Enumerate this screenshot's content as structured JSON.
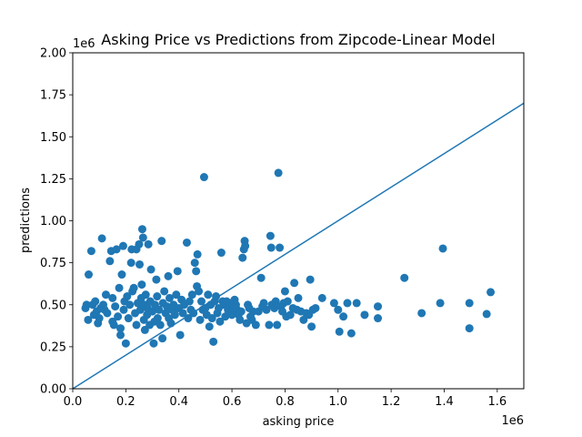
{
  "chart_data": {
    "type": "scatter",
    "title": "Asking Price vs Predictions from Zipcode-Linear Model",
    "xlabel": "asking price",
    "ylabel": "predictions",
    "x_offset_text": "1e6",
    "y_offset_text": "1e6",
    "xlim": [
      0,
      1700000
    ],
    "ylim": [
      0,
      2000000
    ],
    "x_ticks": [
      0,
      200000,
      400000,
      600000,
      800000,
      1000000,
      1200000,
      1400000,
      1600000
    ],
    "x_tick_labels": [
      "0.0",
      "0.2",
      "0.4",
      "0.6",
      "0.8",
      "1.0",
      "1.2",
      "1.4",
      "1.6"
    ],
    "y_ticks": [
      0,
      250000,
      500000,
      750000,
      1000000,
      1250000,
      1500000,
      1750000,
      2000000
    ],
    "y_tick_labels": [
      "0.00",
      "0.25",
      "0.50",
      "0.75",
      "1.00",
      "1.25",
      "1.50",
      "1.75",
      "2.00"
    ],
    "grid": false,
    "colors": {
      "series": "#1f77b4",
      "axes": "#000000",
      "background": "#ffffff"
    },
    "reference_line": {
      "x": [
        0,
        1700000
      ],
      "y": [
        0,
        1700000
      ]
    },
    "points": [
      [
        48000,
        480000
      ],
      [
        52000,
        500000
      ],
      [
        58000,
        410000
      ],
      [
        60000,
        680000
      ],
      [
        70000,
        820000
      ],
      [
        75000,
        500000
      ],
      [
        80000,
        440000
      ],
      [
        85000,
        520000
      ],
      [
        90000,
        460000
      ],
      [
        95000,
        390000
      ],
      [
        100000,
        420000
      ],
      [
        105000,
        480000
      ],
      [
        110000,
        895000
      ],
      [
        115000,
        500000
      ],
      [
        120000,
        470000
      ],
      [
        125000,
        560000
      ],
      [
        130000,
        450000
      ],
      [
        140000,
        760000
      ],
      [
        145000,
        820000
      ],
      [
        150000,
        540000
      ],
      [
        150000,
        400000
      ],
      [
        155000,
        380000
      ],
      [
        160000,
        490000
      ],
      [
        165000,
        830000
      ],
      [
        170000,
        430000
      ],
      [
        175000,
        600000
      ],
      [
        180000,
        360000
      ],
      [
        180000,
        320000
      ],
      [
        185000,
        680000
      ],
      [
        190000,
        850000
      ],
      [
        192000,
        470000
      ],
      [
        195000,
        520000
      ],
      [
        200000,
        270000
      ],
      [
        205000,
        550000
      ],
      [
        210000,
        420000
      ],
      [
        215000,
        500000
      ],
      [
        220000,
        750000
      ],
      [
        222000,
        830000
      ],
      [
        225000,
        580000
      ],
      [
        230000,
        600000
      ],
      [
        235000,
        450000
      ],
      [
        240000,
        830000
      ],
      [
        240000,
        380000
      ],
      [
        245000,
        510000
      ],
      [
        250000,
        860000
      ],
      [
        252000,
        740000
      ],
      [
        255000,
        470000
      ],
      [
        258000,
        540000
      ],
      [
        260000,
        620000
      ],
      [
        262000,
        950000
      ],
      [
        265000,
        900000
      ],
      [
        268000,
        410000
      ],
      [
        270000,
        500000
      ],
      [
        272000,
        350000
      ],
      [
        275000,
        560000
      ],
      [
        280000,
        440000
      ],
      [
        282000,
        480000
      ],
      [
        285000,
        860000
      ],
      [
        290000,
        380000
      ],
      [
        292000,
        520000
      ],
      [
        295000,
        710000
      ],
      [
        300000,
        460000
      ],
      [
        305000,
        270000
      ],
      [
        308000,
        400000
      ],
      [
        310000,
        500000
      ],
      [
        315000,
        650000
      ],
      [
        318000,
        550000
      ],
      [
        320000,
        420000
      ],
      [
        325000,
        470000
      ],
      [
        330000,
        380000
      ],
      [
        335000,
        880000
      ],
      [
        338000,
        300000
      ],
      [
        340000,
        510000
      ],
      [
        345000,
        580000
      ],
      [
        350000,
        450000
      ],
      [
        355000,
        490000
      ],
      [
        360000,
        670000
      ],
      [
        362000,
        420000
      ],
      [
        365000,
        540000
      ],
      [
        370000,
        390000
      ],
      [
        375000,
        470000
      ],
      [
        380000,
        500000
      ],
      [
        385000,
        440000
      ],
      [
        390000,
        560000
      ],
      [
        395000,
        700000
      ],
      [
        400000,
        480000
      ],
      [
        405000,
        320000
      ],
      [
        410000,
        530000
      ],
      [
        415000,
        450000
      ],
      [
        420000,
        500000
      ],
      [
        430000,
        870000
      ],
      [
        435000,
        420000
      ],
      [
        440000,
        520000
      ],
      [
        445000,
        470000
      ],
      [
        450000,
        560000
      ],
      [
        455000,
        450000
      ],
      [
        460000,
        750000
      ],
      [
        465000,
        700000
      ],
      [
        468000,
        610000
      ],
      [
        470000,
        800000
      ],
      [
        475000,
        580000
      ],
      [
        480000,
        410000
      ],
      [
        485000,
        520000
      ],
      [
        490000,
        470000
      ],
      [
        495000,
        1260000
      ],
      [
        500000,
        480000
      ],
      [
        505000,
        440000
      ],
      [
        510000,
        560000
      ],
      [
        515000,
        370000
      ],
      [
        520000,
        500000
      ],
      [
        525000,
        420000
      ],
      [
        530000,
        280000
      ],
      [
        535000,
        520000
      ],
      [
        540000,
        550000
      ],
      [
        545000,
        450000
      ],
      [
        550000,
        480000
      ],
      [
        555000,
        400000
      ],
      [
        560000,
        810000
      ],
      [
        565000,
        520000
      ],
      [
        570000,
        500000
      ],
      [
        575000,
        430000
      ],
      [
        580000,
        520000
      ],
      [
        585000,
        470000
      ],
      [
        590000,
        450000
      ],
      [
        595000,
        510000
      ],
      [
        600000,
        440000
      ],
      [
        605000,
        480000
      ],
      [
        610000,
        530000
      ],
      [
        615000,
        500000
      ],
      [
        620000,
        470000
      ],
      [
        625000,
        440000
      ],
      [
        630000,
        410000
      ],
      [
        635000,
        460000
      ],
      [
        640000,
        780000
      ],
      [
        645000,
        830000
      ],
      [
        648000,
        880000
      ],
      [
        650000,
        850000
      ],
      [
        655000,
        390000
      ],
      [
        660000,
        500000
      ],
      [
        665000,
        480000
      ],
      [
        670000,
        430000
      ],
      [
        675000,
        410000
      ],
      [
        680000,
        460000
      ],
      [
        690000,
        380000
      ],
      [
        700000,
        460000
      ],
      [
        710000,
        660000
      ],
      [
        715000,
        490000
      ],
      [
        720000,
        510000
      ],
      [
        730000,
        470000
      ],
      [
        740000,
        380000
      ],
      [
        745000,
        910000
      ],
      [
        748000,
        840000
      ],
      [
        750000,
        500000
      ],
      [
        760000,
        480000
      ],
      [
        765000,
        520000
      ],
      [
        770000,
        380000
      ],
      [
        775000,
        1285000
      ],
      [
        780000,
        840000
      ],
      [
        785000,
        490000
      ],
      [
        790000,
        460000
      ],
      [
        795000,
        510000
      ],
      [
        800000,
        580000
      ],
      [
        805000,
        430000
      ],
      [
        810000,
        520000
      ],
      [
        820000,
        440000
      ],
      [
        830000,
        480000
      ],
      [
        835000,
        630000
      ],
      [
        845000,
        470000
      ],
      [
        850000,
        540000
      ],
      [
        860000,
        460000
      ],
      [
        870000,
        410000
      ],
      [
        880000,
        450000
      ],
      [
        890000,
        440000
      ],
      [
        895000,
        650000
      ],
      [
        900000,
        370000
      ],
      [
        905000,
        470000
      ],
      [
        915000,
        480000
      ],
      [
        940000,
        540000
      ],
      [
        985000,
        510000
      ],
      [
        1000000,
        470000
      ],
      [
        1005000,
        340000
      ],
      [
        1020000,
        430000
      ],
      [
        1035000,
        510000
      ],
      [
        1050000,
        330000
      ],
      [
        1070000,
        510000
      ],
      [
        1100000,
        440000
      ],
      [
        1150000,
        420000
      ],
      [
        1150000,
        490000
      ],
      [
        1250000,
        660000
      ],
      [
        1315000,
        450000
      ],
      [
        1385000,
        510000
      ],
      [
        1395000,
        835000
      ],
      [
        1495000,
        510000
      ],
      [
        1495000,
        360000
      ],
      [
        1560000,
        445000
      ],
      [
        1575000,
        575000
      ]
    ]
  }
}
